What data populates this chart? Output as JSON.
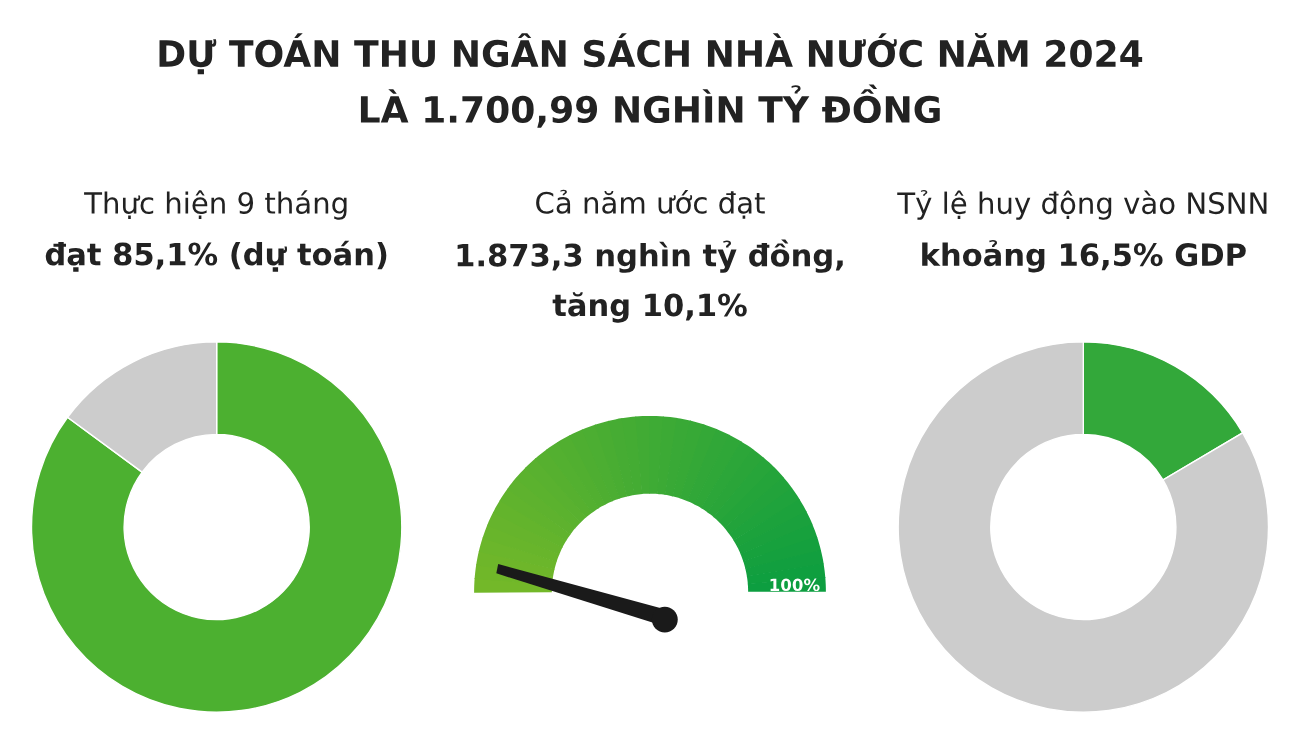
{
  "chart_data": [
    {
      "type": "donut",
      "title": "DỰ TOÁN THU NGÂN SÁCH NHÀ NƯỚC NĂM 2024\nLÀ 1.700,99 NGHÌN TỶ ĐỒNG",
      "annotations": [
        "Thực hiện 9 tháng",
        "đạt 85,1% (dự toán)"
      ],
      "categories": [
        null,
        null
      ],
      "values": [
        85.1,
        14.9
      ],
      "colors": [
        "#4cb030",
        "#cccccc"
      ]
    },
    {
      "type": "other",
      "annotations": [
        "Cả năm ước đạt",
        "1.873,3 nghìn tỷ đồng,",
        "tăng 10,1%",
        "100%"
      ]
    },
    {
      "type": "donut",
      "annotations": [
        "Tỷ lệ huy động vào NSNN",
        "khoảng 16,5% GDP"
      ],
      "categories": [
        null,
        null
      ],
      "values": [
        16.5,
        83.5
      ],
      "colors": [
        "#33a83a",
        "#cccccc"
      ]
    }
  ]
}
